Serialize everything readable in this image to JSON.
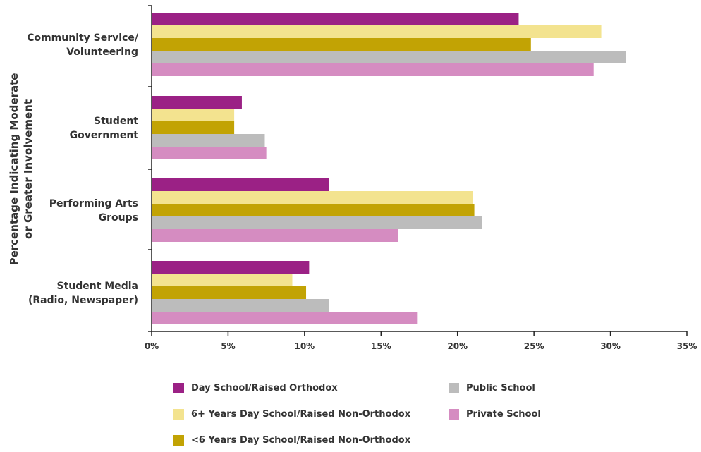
{
  "chart_data": {
    "type": "bar",
    "orientation": "horizontal",
    "ylabel": "Percentage Indicating Moderate or Greater Involvement",
    "ylabel_lines": [
      "Percentage Indicating Moderate",
      "or Greater Involvement"
    ],
    "categories": [
      "Community Service/ Volunteering",
      "Student Government",
      "Performing Arts Groups",
      "Student Media (Radio, Newspaper)"
    ],
    "category_lines": [
      [
        "Community Service/",
        "Volunteering"
      ],
      [
        "Student",
        "Government"
      ],
      [
        "Performing Arts",
        "Groups"
      ],
      [
        "Student Media",
        "(Radio, Newspaper)"
      ]
    ],
    "xlim": [
      0,
      35
    ],
    "xticks": [
      0,
      5,
      10,
      15,
      20,
      25,
      30,
      35
    ],
    "xtick_labels": [
      "0%",
      "5%",
      "10%",
      "15%",
      "20%",
      "25%",
      "30%",
      "35%"
    ],
    "series": [
      {
        "name": "Day School/Raised Orthodox",
        "color": "#9b2185",
        "values": [
          24.0,
          5.9,
          11.6,
          10.3
        ]
      },
      {
        "name": "6+ Years Day School/Raised Non-Orthodox",
        "color": "#f3e38f",
        "values": [
          29.4,
          5.4,
          21.0,
          9.2
        ]
      },
      {
        "name": "<6 Years Day School/Raised Non-Orthodox",
        "color": "#c2a304",
        "values": [
          24.8,
          5.4,
          21.1,
          10.1
        ]
      },
      {
        "name": "Public School",
        "color": "#bcbcbc",
        "values": [
          31.0,
          7.4,
          21.6,
          11.6
        ]
      },
      {
        "name": "Private School",
        "color": "#d58cc1",
        "values": [
          28.9,
          7.5,
          16.1,
          17.4
        ]
      }
    ],
    "legend": [
      {
        "name": "Day School/Raised Orthodox",
        "color": "#9b2185"
      },
      {
        "name": "Public School",
        "color": "#bcbcbc"
      },
      {
        "name": "6+ Years Day School/Raised Non-Orthodox",
        "color": "#f3e38f"
      },
      {
        "name": "Private School",
        "color": "#d58cc1"
      },
      {
        "name": "<6 Years Day School/Raised Non-Orthodox",
        "color": "#c2a304"
      }
    ],
    "legend_placement": "bottom",
    "grid": false
  }
}
